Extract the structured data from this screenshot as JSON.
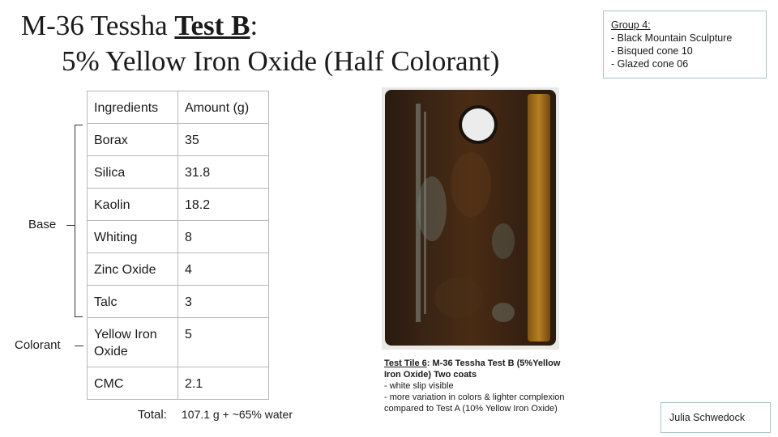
{
  "title": {
    "prefix": "M-36 Tessha ",
    "emphasis": "Test B",
    "suffix": ":",
    "line2": "5% Yellow Iron Oxide (Half Colorant)"
  },
  "group_box": {
    "heading": "Group 4:",
    "lines": [
      "- Black Mountain Sculpture",
      "- Bisqued cone 10",
      "- Glazed cone 06"
    ]
  },
  "table": {
    "headers": [
      "Ingredients",
      "Amount (g)"
    ],
    "rows": [
      {
        "ingredient": "Borax",
        "amount": "35"
      },
      {
        "ingredient": "Silica",
        "amount": "31.8"
      },
      {
        "ingredient": "Kaolin",
        "amount": "18.2"
      },
      {
        "ingredient": "Whiting",
        "amount": "8"
      },
      {
        "ingredient": "Zinc Oxide",
        "amount": "4"
      },
      {
        "ingredient": "Talc",
        "amount": "3"
      },
      {
        "ingredient": "Yellow Iron Oxide",
        "amount": "5"
      },
      {
        "ingredient": "CMC",
        "amount": "2.1"
      }
    ]
  },
  "labels": {
    "base": "Base",
    "colorant": "Colorant"
  },
  "total": {
    "label": "Total:",
    "value": "107.1 g + ~65% water"
  },
  "caption": {
    "tile_label": "Test Tile 6",
    "title_rest": ": M-36 Tessha Test B (5%Yellow Iron Oxide) Two coats",
    "lines": [
      "- white slip visible",
      "- more variation in colors & lighter complexion compared to Test A (10% Yellow Iron Oxide)"
    ]
  },
  "author": "Julia Schwedock",
  "colors": {
    "tile_dark": "#2a1a10",
    "tile_brown": "#5a3518",
    "tile_amber": "#b07a1e",
    "box_border": "#a8c4c4"
  }
}
